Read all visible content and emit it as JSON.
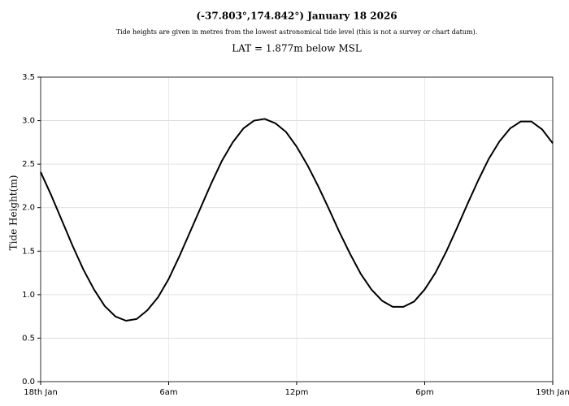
{
  "chart_data": {
    "type": "line",
    "title": "(-37.803°,174.842°) January 18 2026",
    "subtitle": "Tide heights are given in metres from the lowest astronomical tide level (this is not a survey or chart datum).",
    "annotation": "LAT = 1.877m below MSL",
    "y_label": "Tide Height(m)",
    "x": [
      0,
      0.5,
      1,
      1.5,
      2,
      2.5,
      3,
      3.5,
      4,
      4.5,
      5,
      5.5,
      6,
      6.5,
      7,
      7.5,
      8,
      8.5,
      9,
      9.5,
      10,
      10.5,
      11,
      11.5,
      12,
      12.5,
      13,
      13.5,
      14,
      14.5,
      15,
      15.5,
      16,
      16.5,
      17,
      17.5,
      18,
      18.5,
      19,
      19.5,
      20,
      20.5,
      21,
      21.5,
      22,
      22.5,
      23,
      23.5,
      24
    ],
    "series": [
      {
        "color": "#000000",
        "values": [
          2.41,
          2.14,
          1.85,
          1.56,
          1.29,
          1.06,
          0.87,
          0.75,
          0.7,
          0.72,
          0.82,
          0.97,
          1.18,
          1.44,
          1.72,
          2.0,
          2.28,
          2.54,
          2.75,
          2.91,
          3.0,
          3.02,
          2.97,
          2.87,
          2.7,
          2.49,
          2.25,
          1.99,
          1.72,
          1.47,
          1.24,
          1.06,
          0.93,
          0.86,
          0.86,
          0.92,
          1.06,
          1.25,
          1.49,
          1.76,
          2.04,
          2.31,
          2.56,
          2.76,
          2.91,
          2.99,
          2.99,
          2.9,
          2.74
        ]
      }
    ],
    "xlim": [
      0,
      24
    ],
    "xticks": [
      {
        "value": 0,
        "label": "18th Jan"
      },
      {
        "value": 6,
        "label": "6am"
      },
      {
        "value": 12,
        "label": "12pm"
      },
      {
        "value": 18,
        "label": "6pm"
      },
      {
        "value": 24,
        "label": "19th Jan"
      }
    ],
    "ylim": [
      0,
      3.5
    ],
    "yticks": [
      {
        "value": 0,
        "label": "0.0"
      },
      0.5,
      {
        "value": 1,
        "label": "1.0"
      },
      1.5,
      {
        "value": 2,
        "label": "2.0"
      },
      2.5,
      {
        "value": 3,
        "label": "3.0"
      },
      3.5
    ],
    "grid": true
  }
}
